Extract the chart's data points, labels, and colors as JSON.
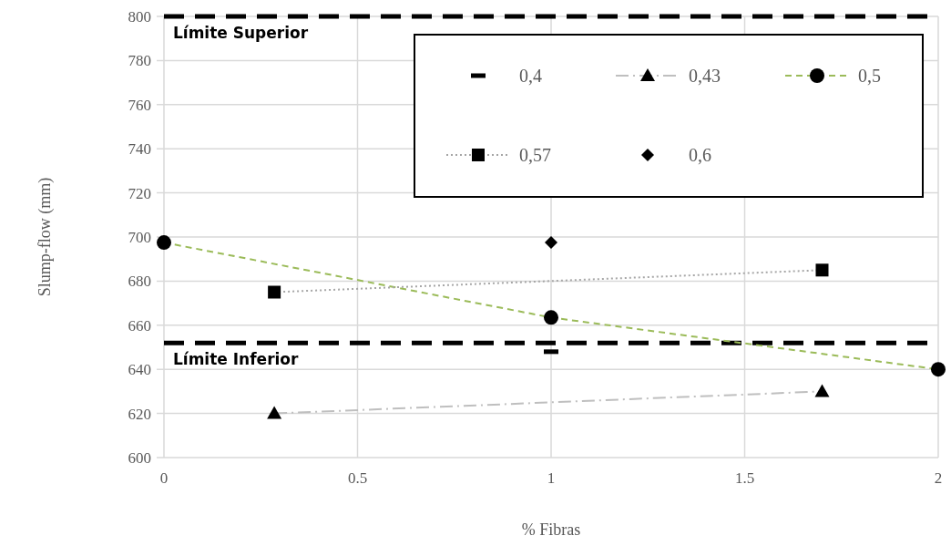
{
  "chart_data": {
    "type": "line",
    "xlabel": "% Fibras",
    "ylabel": "Slump-flow (mm)",
    "xlim": [
      0,
      2
    ],
    "xticks": [
      0,
      0.5,
      1,
      1.5,
      2
    ],
    "ylim": [
      600,
      800
    ],
    "yticks": [
      600,
      620,
      640,
      660,
      680,
      700,
      720,
      740,
      760,
      780,
      800
    ],
    "grid": true,
    "legend": "top right",
    "series": [
      {
        "name": "0,4",
        "type": "scatter",
        "color": "#000000",
        "x": [
          1
        ],
        "values": [
          648
        ]
      },
      {
        "name": "0,43",
        "marker": "triangle",
        "line_style": "dashdot",
        "color": "#bfbfbf",
        "x": [
          0.285,
          1.7
        ],
        "values": [
          620,
          630
        ]
      },
      {
        "name": "0,5",
        "marker": "circle",
        "line_style": "dashed",
        "color": "#9bbb59",
        "x": [
          0,
          1,
          2
        ],
        "values": [
          697.5,
          663.5,
          640
        ]
      },
      {
        "name": "0,57",
        "marker": "square",
        "line_style": "dotted",
        "color": "#a6a6a6",
        "x": [
          0.285,
          1.7
        ],
        "values": [
          675,
          685
        ]
      },
      {
        "name": "0,6",
        "type": "scatter",
        "marker": "diamond",
        "color": "#000000",
        "x": [
          1
        ],
        "values": [
          697.5
        ]
      }
    ],
    "ref_lines": [
      {
        "axis": "y",
        "value": 800,
        "label": "Límite Superior",
        "color": "#000000",
        "line_style": "dashed"
      },
      {
        "axis": "y",
        "value": 652,
        "label": "Límite Inferior",
        "color": "#000000",
        "line_style": "dashed"
      }
    ]
  }
}
